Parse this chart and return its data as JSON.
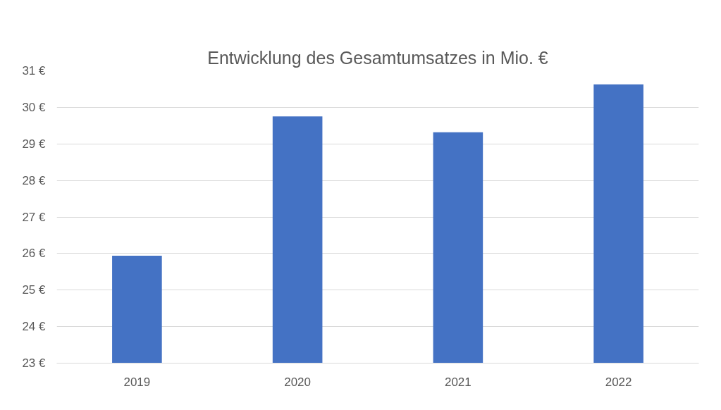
{
  "chart_data": {
    "type": "bar",
    "title": "Entwicklung des Gesamtumsatzes in Mio. €",
    "categories": [
      "2019",
      "2020",
      "2021",
      "2022"
    ],
    "values": [
      25.94,
      29.75,
      29.32,
      30.63
    ],
    "color": "#4472c4",
    "ylim": [
      23,
      31
    ],
    "yticks": [
      {
        "value": 23,
        "label": "23 €"
      },
      {
        "value": 24,
        "label": "24 €"
      },
      {
        "value": 25,
        "label": "25 €"
      },
      {
        "value": 26,
        "label": "26 €"
      },
      {
        "value": 27,
        "label": "27 €"
      },
      {
        "value": 28,
        "label": "28 €"
      },
      {
        "value": 29,
        "label": "29 €"
      },
      {
        "value": 30,
        "label": "30 €"
      },
      {
        "value": 31,
        "label": "31 €"
      }
    ],
    "grid": "y"
  }
}
